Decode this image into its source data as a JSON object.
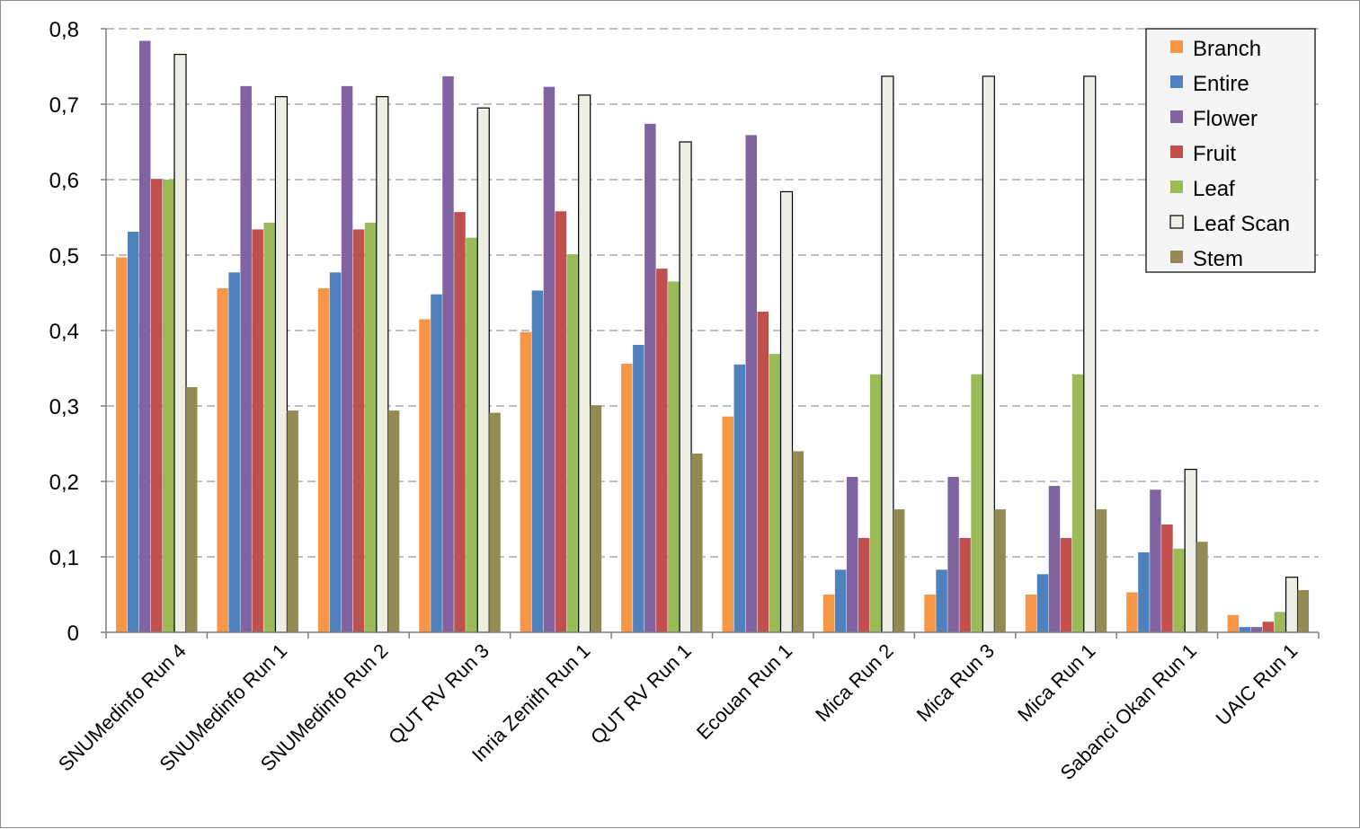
{
  "chart_data": {
    "type": "bar",
    "ylim": [
      0,
      0.8
    ],
    "yticks": [
      "0",
      "0,1",
      "0,2",
      "0,3",
      "0,4",
      "0,5",
      "0,6",
      "0,7",
      "0,8"
    ],
    "grid": true,
    "legend_position": "top-right",
    "categories": [
      "SNUMedinfo Run 4",
      "SNUMedinfo Run 1",
      "SNUMedinfo Run 2",
      "QUT RV Run 3",
      "Inria Zenith Run 1",
      "QUT RV Run 1",
      "Ecouan Run 1",
      "Mica Run 2",
      "Mica Run 3",
      "Mica Run 1",
      "Sabanci Okan Run 1",
      "UAIC Run 1"
    ],
    "series": [
      {
        "name": "Branch",
        "color": "#f79646",
        "values": [
          0.497,
          0.456,
          0.456,
          0.415,
          0.398,
          0.356,
          0.286,
          0.05,
          0.05,
          0.05,
          0.053,
          0.023
        ]
      },
      {
        "name": "Entire",
        "color": "#4f81bd",
        "values": [
          0.531,
          0.477,
          0.477,
          0.448,
          0.453,
          0.381,
          0.355,
          0.083,
          0.083,
          0.077,
          0.106,
          0.007
        ]
      },
      {
        "name": "Flower",
        "color": "#8064a2",
        "values": [
          0.784,
          0.724,
          0.724,
          0.737,
          0.723,
          0.674,
          0.659,
          0.206,
          0.206,
          0.194,
          0.189,
          0.007
        ]
      },
      {
        "name": "Fruit",
        "color": "#c0504d",
        "values": [
          0.601,
          0.534,
          0.534,
          0.557,
          0.558,
          0.482,
          0.425,
          0.125,
          0.125,
          0.125,
          0.143,
          0.014
        ]
      },
      {
        "name": "Leaf",
        "color": "#9bbb59",
        "values": [
          0.6,
          0.543,
          0.543,
          0.523,
          0.501,
          0.465,
          0.369,
          0.342,
          0.342,
          0.342,
          0.111,
          0.027
        ]
      },
      {
        "name": "Leaf Scan",
        "color": "#eeefe4",
        "values": [
          0.766,
          0.71,
          0.71,
          0.695,
          0.712,
          0.65,
          0.584,
          0.737,
          0.737,
          0.737,
          0.216,
          0.073
        ]
      },
      {
        "name": "Stem",
        "color": "#948a54",
        "values": [
          0.325,
          0.294,
          0.294,
          0.291,
          0.301,
          0.237,
          0.24,
          0.163,
          0.163,
          0.163,
          0.12,
          0.056
        ]
      }
    ]
  }
}
